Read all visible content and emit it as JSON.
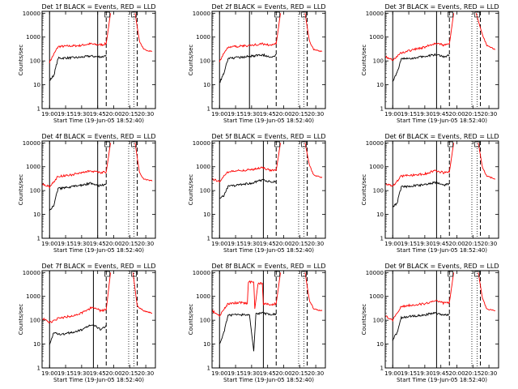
{
  "chart_data": {
    "type": "line",
    "layout": "3x3 grid",
    "title_template": "Det {det}f BLACK = Events, RED = LLD",
    "xlabel": "Start Time (19-Jun-05 18:52:40)",
    "ylabel": "Counts/sec",
    "y_scale": "log",
    "ylim": [
      1,
      12000
    ],
    "yticks": [
      "1",
      "10",
      "100",
      "1000",
      "10000"
    ],
    "xlim_minutes": [
      -7,
      99
    ],
    "xticks": [
      "19:00",
      "19:15",
      "19:30",
      "19:45",
      "20:00",
      "20:15",
      "20:30"
    ],
    "colors": {
      "events": "#000000",
      "lld": "#ff0000"
    },
    "series_names": [
      "BLACK = Events",
      "RED = LLD"
    ],
    "panels": [
      {
        "det": "1",
        "solid_lines": [
          0,
          45
        ],
        "dashed_lines": [
          53,
          82
        ],
        "dotted_lines": [
          74,
          79
        ],
        "markers": [
          "S",
          "D"
        ],
        "events": [
          [
            0,
            15
          ],
          [
            4,
            25
          ],
          [
            8,
            130
          ],
          [
            20,
            135
          ],
          [
            28,
            140
          ],
          [
            38,
            160
          ],
          [
            44,
            150
          ],
          [
            50,
            150
          ],
          [
            53,
            180
          ]
        ],
        "lld": [
          [
            0,
            90
          ],
          [
            4,
            190
          ],
          [
            8,
            400
          ],
          [
            18,
            420
          ],
          [
            28,
            440
          ],
          [
            38,
            520
          ],
          [
            44,
            480
          ],
          [
            50,
            480
          ],
          [
            53,
            540
          ],
          [
            57,
            10000
          ]
        ],
        "lld_post": [
          [
            80,
            10000
          ],
          [
            84,
            700
          ],
          [
            88,
            300
          ],
          [
            96,
            250
          ]
        ]
      },
      {
        "det": "2",
        "solid_lines": [
          0,
          28
        ],
        "dashed_lines": [
          53,
          82
        ],
        "dotted_lines": [
          74,
          79
        ],
        "markers": [
          "S",
          "D"
        ],
        "events": [
          [
            0,
            12
          ],
          [
            4,
            30
          ],
          [
            8,
            130
          ],
          [
            20,
            140
          ],
          [
            30,
            160
          ],
          [
            40,
            180
          ],
          [
            48,
            150
          ],
          [
            53,
            180
          ]
        ],
        "lld": [
          [
            0,
            100
          ],
          [
            4,
            200
          ],
          [
            8,
            380
          ],
          [
            20,
            420
          ],
          [
            30,
            450
          ],
          [
            40,
            520
          ],
          [
            48,
            460
          ],
          [
            53,
            520
          ],
          [
            57,
            10000
          ]
        ],
        "lld_post": [
          [
            80,
            10000
          ],
          [
            84,
            700
          ],
          [
            88,
            300
          ],
          [
            96,
            250
          ]
        ]
      },
      {
        "det": "3",
        "solid_lines": [
          0,
          41
        ],
        "dashed_lines": [
          53,
          82
        ],
        "dotted_lines": [
          74,
          79
        ],
        "markers": [
          "S",
          "D"
        ],
        "events": [
          [
            0,
            15
          ],
          [
            4,
            30
          ],
          [
            8,
            120
          ],
          [
            20,
            130
          ],
          [
            30,
            160
          ],
          [
            40,
            180
          ],
          [
            48,
            150
          ],
          [
            53,
            170
          ]
        ],
        "lld": [
          [
            -7,
            150
          ],
          [
            0,
            110
          ],
          [
            8,
            220
          ],
          [
            20,
            300
          ],
          [
            30,
            380
          ],
          [
            40,
            560
          ],
          [
            48,
            450
          ],
          [
            53,
            500
          ],
          [
            57,
            10000
          ]
        ],
        "lld_post": [
          [
            78,
            10000
          ],
          [
            84,
            1200
          ],
          [
            88,
            450
          ],
          [
            96,
            300
          ]
        ]
      },
      {
        "det": "4",
        "solid_lines": [
          0,
          45
        ],
        "dashed_lines": [
          53,
          82
        ],
        "dotted_lines": [
          74,
          79
        ],
        "markers": [
          "S",
          "D"
        ],
        "events": [
          [
            0,
            15
          ],
          [
            4,
            25
          ],
          [
            8,
            120
          ],
          [
            20,
            140
          ],
          [
            30,
            170
          ],
          [
            38,
            200
          ],
          [
            46,
            160
          ],
          [
            53,
            180
          ]
        ],
        "lld": [
          [
            -7,
            200
          ],
          [
            0,
            140
          ],
          [
            8,
            400
          ],
          [
            20,
            450
          ],
          [
            30,
            560
          ],
          [
            38,
            700
          ],
          [
            46,
            560
          ],
          [
            53,
            600
          ],
          [
            57,
            10000
          ]
        ],
        "lld_post": [
          [
            80,
            10000
          ],
          [
            84,
            600
          ],
          [
            88,
            300
          ],
          [
            96,
            250
          ]
        ]
      },
      {
        "det": "5",
        "solid_lines": [
          0,
          41
        ],
        "dashed_lines": [
          53,
          82
        ],
        "dotted_lines": [
          74,
          79
        ],
        "markers": [
          "S",
          "D"
        ],
        "events": [
          [
            0,
            50
          ],
          [
            4,
            60
          ],
          [
            8,
            150
          ],
          [
            20,
            180
          ],
          [
            30,
            200
          ],
          [
            40,
            280
          ],
          [
            48,
            230
          ],
          [
            53,
            250
          ]
        ],
        "lld": [
          [
            -7,
            300
          ],
          [
            0,
            250
          ],
          [
            8,
            600
          ],
          [
            20,
            700
          ],
          [
            30,
            750
          ],
          [
            40,
            900
          ],
          [
            48,
            700
          ],
          [
            53,
            700
          ],
          [
            57,
            10000
          ]
        ],
        "lld_post": [
          [
            80,
            10000
          ],
          [
            84,
            1200
          ],
          [
            88,
            450
          ],
          [
            96,
            350
          ]
        ]
      },
      {
        "det": "6",
        "solid_lines": [
          0,
          41
        ],
        "dashed_lines": [
          53,
          82
        ],
        "dotted_lines": [
          74,
          79
        ],
        "markers": [
          "S",
          "D"
        ],
        "events": [
          [
            0,
            20
          ],
          [
            4,
            30
          ],
          [
            8,
            140
          ],
          [
            20,
            160
          ],
          [
            30,
            180
          ],
          [
            40,
            220
          ],
          [
            48,
            170
          ],
          [
            53,
            200
          ]
        ],
        "lld": [
          [
            -7,
            200
          ],
          [
            0,
            150
          ],
          [
            8,
            400
          ],
          [
            20,
            450
          ],
          [
            30,
            500
          ],
          [
            40,
            700
          ],
          [
            48,
            550
          ],
          [
            53,
            600
          ],
          [
            57,
            10000
          ]
        ],
        "lld_post": [
          [
            80,
            10000
          ],
          [
            84,
            900
          ],
          [
            88,
            400
          ],
          [
            96,
            300
          ]
        ]
      },
      {
        "det": "7",
        "solid_lines": [
          0,
          41
        ],
        "dashed_lines": [
          53,
          82
        ],
        "dotted_lines": [
          74,
          79
        ],
        "markers": [
          "S",
          "D"
        ],
        "events": [
          [
            0,
            10
          ],
          [
            4,
            30
          ],
          [
            8,
            25
          ],
          [
            20,
            30
          ],
          [
            30,
            40
          ],
          [
            40,
            70
          ],
          [
            48,
            40
          ],
          [
            53,
            60
          ]
        ],
        "lld": [
          [
            -7,
            120
          ],
          [
            0,
            80
          ],
          [
            8,
            120
          ],
          [
            20,
            150
          ],
          [
            30,
            200
          ],
          [
            40,
            350
          ],
          [
            48,
            250
          ],
          [
            53,
            280
          ],
          [
            57,
            10000
          ]
        ],
        "lld_post": [
          [
            78,
            10000
          ],
          [
            82,
            400
          ],
          [
            88,
            250
          ],
          [
            96,
            200
          ]
        ]
      },
      {
        "det": "8",
        "solid_lines": [
          0,
          41
        ],
        "dashed_lines": [
          53,
          82
        ],
        "dotted_lines": [
          74,
          79
        ],
        "markers": [
          "S",
          "D"
        ],
        "events": [
          [
            0,
            10
          ],
          [
            4,
            30
          ],
          [
            8,
            160
          ],
          [
            20,
            170
          ],
          [
            28,
            170
          ],
          [
            32,
            5
          ],
          [
            34,
            180
          ],
          [
            40,
            200
          ],
          [
            48,
            170
          ],
          [
            53,
            190
          ]
        ],
        "lld": [
          [
            -7,
            250
          ],
          [
            0,
            150
          ],
          [
            8,
            500
          ],
          [
            20,
            550
          ],
          [
            26,
            500
          ],
          [
            27,
            4000
          ],
          [
            32,
            4000
          ],
          [
            33,
            300
          ],
          [
            36,
            3500
          ],
          [
            40,
            3500
          ],
          [
            41,
            500
          ],
          [
            48,
            450
          ],
          [
            53,
            500
          ],
          [
            57,
            10000
          ]
        ],
        "lld_post": [
          [
            80,
            10000
          ],
          [
            84,
            700
          ],
          [
            88,
            300
          ],
          [
            96,
            250
          ]
        ]
      },
      {
        "det": "9",
        "solid_lines": [
          0,
          41
        ],
        "dashed_lines": [
          53,
          82
        ],
        "dotted_lines": [
          74,
          79
        ],
        "markers": [
          "S",
          "D"
        ],
        "events": [
          [
            0,
            15
          ],
          [
            4,
            30
          ],
          [
            8,
            130
          ],
          [
            20,
            150
          ],
          [
            30,
            170
          ],
          [
            40,
            200
          ],
          [
            48,
            160
          ],
          [
            53,
            180
          ]
        ],
        "lld": [
          [
            -7,
            150
          ],
          [
            0,
            100
          ],
          [
            8,
            380
          ],
          [
            20,
            450
          ],
          [
            30,
            500
          ],
          [
            40,
            650
          ],
          [
            48,
            520
          ],
          [
            53,
            550
          ],
          [
            57,
            10000
          ]
        ],
        "lld_post": [
          [
            80,
            10000
          ],
          [
            84,
            800
          ],
          [
            88,
            300
          ],
          [
            96,
            250
          ]
        ]
      }
    ]
  }
}
